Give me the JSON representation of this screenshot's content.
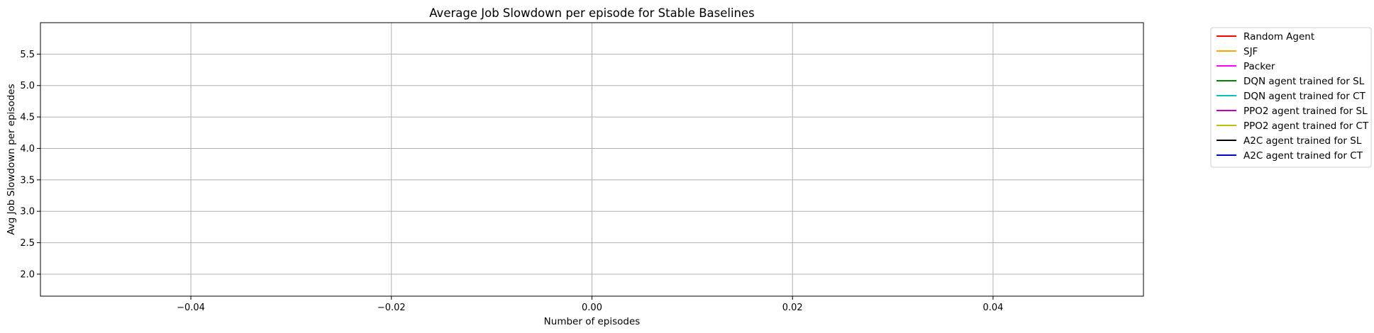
{
  "chart_data": {
    "type": "line",
    "title": "Average Job Slowdown per episode for Stable Baselines",
    "xlabel": "Number of episodes",
    "ylabel": "Avg Job Slowdown per episodes",
    "xlim": [
      -0.055,
      0.055
    ],
    "ylim": [
      1.65,
      6.0
    ],
    "xticks": [
      -0.04,
      -0.02,
      0.0,
      0.02,
      0.04
    ],
    "xtick_labels": [
      "−0.04",
      "−0.02",
      "0.00",
      "0.02",
      "0.04"
    ],
    "yticks": [
      2.0,
      2.5,
      3.0,
      3.5,
      4.0,
      4.5,
      5.0,
      5.5
    ],
    "ytick_labels": [
      "2.0",
      "2.5",
      "3.0",
      "3.5",
      "4.0",
      "4.5",
      "5.0",
      "5.5"
    ],
    "grid": true,
    "legend_position": "outside upper right",
    "series": [
      {
        "name": "Random Agent",
        "color": "#ff0000",
        "x": [],
        "values": []
      },
      {
        "name": "SJF",
        "color": "#ffa500",
        "x": [],
        "values": []
      },
      {
        "name": "Packer",
        "color": "#ff00ff",
        "x": [],
        "values": []
      },
      {
        "name": "DQN agent trained for SL",
        "color": "#008000",
        "x": [],
        "values": []
      },
      {
        "name": "DQN agent trained for CT",
        "color": "#00bfbf",
        "x": [],
        "values": []
      },
      {
        "name": "PPO2 agent trained for SL",
        "color": "#c000c0",
        "x": [],
        "values": []
      },
      {
        "name": "PPO2 agent trained for CT",
        "color": "#bfbf00",
        "x": [],
        "values": []
      },
      {
        "name": "A2C agent trained for SL",
        "color": "#000000",
        "x": [],
        "values": []
      },
      {
        "name": "A2C agent trained for CT",
        "color": "#0000cd",
        "x": [],
        "values": []
      }
    ]
  }
}
